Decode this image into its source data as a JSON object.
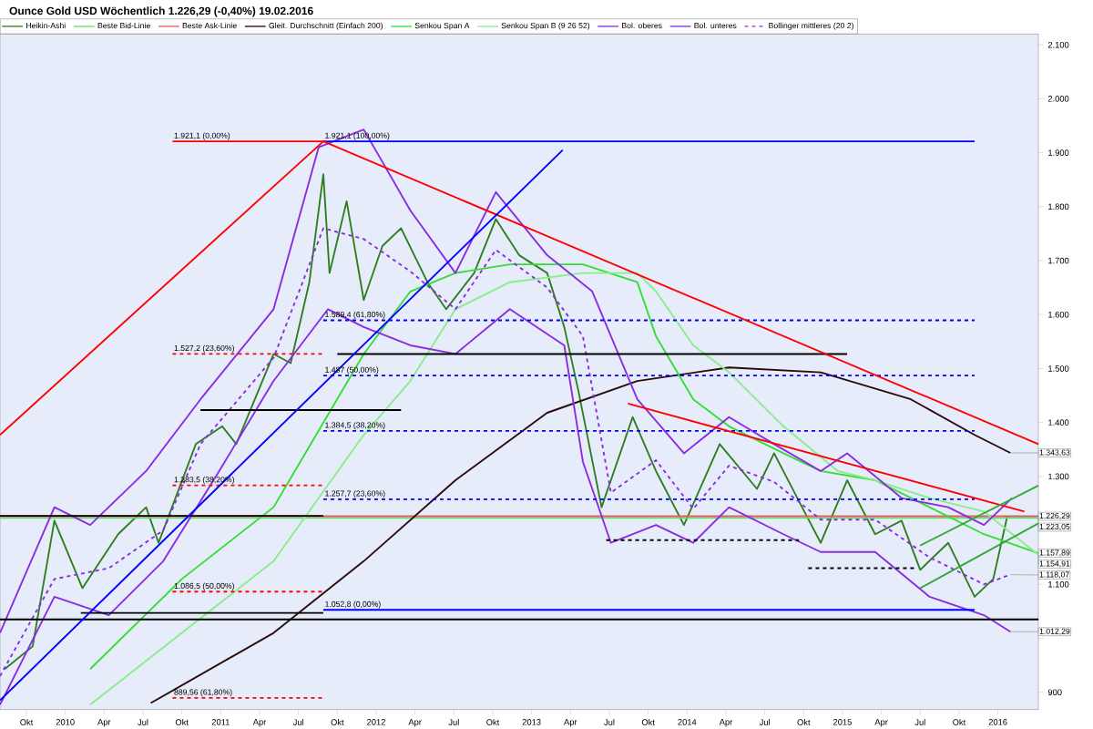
{
  "chart_data": {
    "type": "line",
    "title": "Ounce Gold USD   Wöchentlich   1.226,29 (-0,40%)   19.02.2016",
    "xlim": [
      2009.58,
      2016.26
    ],
    "ylim": [
      868,
      2120
    ],
    "xticks": [
      {
        "value": 2009.75,
        "label": "Okt"
      },
      {
        "value": 2010,
        "label": "2010"
      },
      {
        "value": 2010.25,
        "label": "Apr"
      },
      {
        "value": 2010.5,
        "label": "Jul"
      },
      {
        "value": 2010.75,
        "label": "Okt"
      },
      {
        "value": 2011,
        "label": "2011"
      },
      {
        "value": 2011.25,
        "label": "Apr"
      },
      {
        "value": 2011.5,
        "label": "Jul"
      },
      {
        "value": 2011.75,
        "label": "Okt"
      },
      {
        "value": 2012,
        "label": "2012"
      },
      {
        "value": 2012.25,
        "label": "Apr"
      },
      {
        "value": 2012.5,
        "label": "Jul"
      },
      {
        "value": 2012.75,
        "label": "Okt"
      },
      {
        "value": 2013,
        "label": "2013"
      },
      {
        "value": 2013.25,
        "label": "Apr"
      },
      {
        "value": 2013.5,
        "label": "Jul"
      },
      {
        "value": 2013.75,
        "label": "Okt"
      },
      {
        "value": 2014,
        "label": "2014"
      },
      {
        "value": 2014.25,
        "label": "Apr"
      },
      {
        "value": 2014.5,
        "label": "Jul"
      },
      {
        "value": 2014.75,
        "label": "Okt"
      },
      {
        "value": 2015,
        "label": "2015"
      },
      {
        "value": 2015.25,
        "label": "Apr"
      },
      {
        "value": 2015.5,
        "label": "Jul"
      },
      {
        "value": 2015.75,
        "label": "Okt"
      },
      {
        "value": 2016,
        "label": "2016"
      }
    ],
    "yticks": [
      900,
      {
        "value": 1000,
        "label": null
      },
      {
        "value": 1100,
        "label": "1.100"
      },
      {
        "value": 1200,
        "label": null
      },
      {
        "value": 1300,
        "label": "1.300"
      },
      {
        "value": 1400,
        "label": "1.400"
      },
      {
        "value": 1500,
        "label": "1.500"
      },
      {
        "value": 1600,
        "label": "1.600"
      },
      {
        "value": 1700,
        "label": "1.700"
      },
      {
        "value": 1800,
        "label": "1.800"
      },
      {
        "value": 1900,
        "label": "1.900"
      },
      {
        "value": 2000,
        "label": "2.000"
      },
      {
        "value": 2100,
        "label": "2.100"
      }
    ],
    "legend": "top left",
    "series": [
      {
        "name": "Heikin-Ashi",
        "color": "#2e7d1e",
        "x": [
          2009.61,
          2009.79,
          2009.93,
          2010.11,
          2010.34,
          2010.52,
          2010.6,
          2010.84,
          2011.01,
          2011.1,
          2011.34,
          2011.45,
          2011.57,
          2011.66,
          2011.7,
          2011.81,
          2011.92,
          2012.04,
          2012.16,
          2012.33,
          2012.45,
          2012.63,
          2012.77,
          2012.92,
          2013.1,
          2013.21,
          2013.3,
          2013.45,
          2013.57,
          2013.65,
          2013.8,
          2013.98,
          2014.21,
          2014.45,
          2014.56,
          2014.74,
          2014.86,
          2015.03,
          2015.21,
          2015.38,
          2015.5,
          2015.68,
          2015.85,
          2015.97,
          2016.06
        ],
        "values": [
          943,
          985,
          1218,
          1093,
          1193,
          1243,
          1177,
          1360,
          1393,
          1360,
          1527,
          1510,
          1660,
          1860,
          1677,
          1810,
          1627,
          1727,
          1760,
          1660,
          1610,
          1677,
          1777,
          1710,
          1677,
          1577,
          1460,
          1243,
          1343,
          1410,
          1310,
          1210,
          1360,
          1277,
          1343,
          1243,
          1177,
          1293,
          1193,
          1218,
          1127,
          1177,
          1077,
          1110,
          1226.29
        ]
      },
      {
        "name": "Beste Bid-Linie",
        "color": "#66dd66",
        "x": [
          2009.58,
          2016.26
        ],
        "values": [
          1223.05,
          1223.05
        ]
      },
      {
        "name": "Beste Ask-Linie",
        "color": "#e06060",
        "x": [
          2009.58,
          2016.26
        ],
        "values": [
          1226.29,
          1226.29
        ]
      },
      {
        "name": "Gleit. Durchschnitt (Einfach 200)",
        "color": "#2b0a0a",
        "x": [
          2010.55,
          2011.34,
          2011.92,
          2012.51,
          2013.1,
          2013.68,
          2014.27,
          2014.86,
          2015.44,
          2015.85,
          2016.08
        ],
        "values": [
          880,
          1010,
          1143,
          1293,
          1418,
          1477,
          1502,
          1493,
          1443,
          1377,
          1343.63
        ]
      },
      {
        "name": "Senkou Span A",
        "color": "#33dd33",
        "x": [
          2010.16,
          2010.75,
          2011.34,
          2011.92,
          2012.22,
          2012.51,
          2012.86,
          2013.33,
          2013.68,
          2013.8,
          2014.04,
          2014.27,
          2014.62,
          2014.86,
          2015.21,
          2015.56,
          2015.91,
          2016.26
        ],
        "values": [
          943,
          1110,
          1243,
          1527,
          1643,
          1677,
          1693,
          1693,
          1660,
          1560,
          1443,
          1393,
          1343,
          1310,
          1293,
          1243,
          1193,
          1157.89
        ]
      },
      {
        "name": "Senkou Span B (9 26 52)",
        "color": "#88ee88",
        "x": [
          2010.16,
          2010.75,
          2011.34,
          2011.92,
          2012.22,
          2012.51,
          2012.86,
          2013.33,
          2013.68,
          2013.8,
          2014.04,
          2014.27,
          2014.62,
          2014.97,
          2015.21,
          2015.56,
          2015.91,
          2016.26
        ],
        "values": [
          877,
          1010,
          1143,
          1377,
          1477,
          1610,
          1660,
          1677,
          1677,
          1643,
          1543,
          1493,
          1393,
          1310,
          1293,
          1260,
          1235,
          1154.91
        ]
      },
      {
        "name": "Bol. oberes",
        "color": "#8a2be2",
        "x": [
          2009.58,
          2009.93,
          2010.16,
          2010.52,
          2010.87,
          2011.34,
          2011.63,
          2011.92,
          2012.22,
          2012.51,
          2012.77,
          2013.1,
          2013.39,
          2013.68,
          2013.98,
          2014.27,
          2014.56,
          2014.86,
          2015.03,
          2015.38,
          2015.68,
          2015.91,
          2016.09
        ],
        "values": [
          1010,
          1243,
          1210,
          1310,
          1443,
          1610,
          1910,
          1943,
          1793,
          1677,
          1827,
          1710,
          1643,
          1443,
          1343,
          1410,
          1360,
          1310,
          1343,
          1260,
          1243,
          1210,
          1260
        ]
      },
      {
        "name": "Bol. unteres",
        "color": "#8a2be2",
        "x": [
          2009.58,
          2009.93,
          2010.28,
          2010.63,
          2010.99,
          2011.34,
          2011.69,
          2011.92,
          2012.22,
          2012.51,
          2012.86,
          2013.21,
          2013.33,
          2013.51,
          2013.8,
          2014.04,
          2014.27,
          2014.62,
          2014.86,
          2015.21,
          2015.56,
          2015.91,
          2016.08
        ],
        "values": [
          877,
          1077,
          1043,
          1143,
          1310,
          1477,
          1610,
          1577,
          1543,
          1527,
          1610,
          1543,
          1327,
          1177,
          1210,
          1177,
          1243,
          1193,
          1160,
          1160,
          1077,
          1043,
          1012.29
        ]
      },
      {
        "name": "Bollinger mittleres (20 2)",
        "color": "#8a2be2",
        "line_style": "dashed",
        "x": [
          2009.58,
          2009.93,
          2010.28,
          2010.63,
          2010.87,
          2011.34,
          2011.66,
          2011.92,
          2012.22,
          2012.51,
          2012.77,
          2013.1,
          2013.33,
          2013.51,
          2013.8,
          2014.04,
          2014.27,
          2014.56,
          2014.86,
          2015.21,
          2015.56,
          2015.91,
          2016.08
        ],
        "values": [
          930,
          1110,
          1130,
          1200,
          1360,
          1520,
          1760,
          1740,
          1680,
          1610,
          1720,
          1650,
          1560,
          1270,
          1330,
          1240,
          1320,
          1290,
          1220,
          1220,
          1150,
          1100,
          1118.07
        ]
      },
      {
        "color": "#ff0000",
        "x": [
          2010.69,
          2011.66
        ],
        "values": [
          1921.1,
          1921.1
        ]
      },
      {
        "color": "#0000ff",
        "x": [
          2011.66,
          2015.85
        ],
        "values": [
          1921.1,
          1921.1
        ]
      },
      {
        "color": "#ff0000",
        "line_style": "dashed",
        "x": [
          2010.69,
          2011.66
        ],
        "values": [
          1527.2,
          1527.2
        ]
      },
      {
        "color": "#ff0000",
        "line_style": "dashed",
        "x": [
          2010.69,
          2011.66
        ],
        "values": [
          1283.5,
          1283.5
        ]
      },
      {
        "color": "#ff0000",
        "line_style": "dashed",
        "x": [
          2010.69,
          2011.66
        ],
        "values": [
          1086.5,
          1086.5
        ]
      },
      {
        "color": "#ff0000",
        "line_style": "dashed",
        "x": [
          2010.69,
          2011.66
        ],
        "values": [
          889.56,
          889.56
        ]
      },
      {
        "color": "#0000ff",
        "line_style": "dashed",
        "x": [
          2011.66,
          2015.85
        ],
        "values": [
          1589.4,
          1589.4
        ]
      },
      {
        "color": "#0000ff",
        "line_style": "dashed",
        "x": [
          2011.66,
          2015.85
        ],
        "values": [
          1487,
          1487
        ]
      },
      {
        "color": "#0000ff",
        "line_style": "dashed",
        "x": [
          2011.66,
          2015.85
        ],
        "values": [
          1384.5,
          1384.5
        ]
      },
      {
        "color": "#0000ff",
        "line_style": "dashed",
        "x": [
          2011.66,
          2015.85
        ],
        "values": [
          1257.7,
          1257.7
        ]
      },
      {
        "color": "#0000ff",
        "x": [
          2011.66,
          2015.85
        ],
        "values": [
          1052.8,
          1052.8
        ]
      },
      {
        "color": "#000000",
        "x": [
          2011.75,
          2015.03
        ],
        "values": [
          1527,
          1527
        ]
      },
      {
        "color": "#000000",
        "x": [
          2009.58,
          2016.26
        ],
        "values": [
          1035,
          1035
        ]
      },
      {
        "color": "#000000",
        "x": [
          2010.1,
          2011.66
        ],
        "values": [
          1047,
          1047
        ]
      },
      {
        "color": "#000000",
        "x": [
          2010.87,
          2012.16
        ],
        "values": [
          1423,
          1423
        ]
      },
      {
        "color": "#000000",
        "x": [
          2009.58,
          2011.66
        ],
        "values": [
          1227,
          1227
        ]
      },
      {
        "color": "#000000",
        "line_style": "dashed",
        "x": [
          2013.48,
          2014.72
        ],
        "values": [
          1182,
          1182
        ]
      },
      {
        "color": "#000000",
        "line_style": "dashed",
        "x": [
          2014.78,
          2015.48
        ],
        "values": [
          1130,
          1130
        ]
      },
      {
        "color": "#ff0000",
        "x": [
          2009.58,
          2011.66,
          2016.26
        ],
        "values": [
          1377,
          1921.1,
          1360
        ]
      },
      {
        "color": "#ff0000",
        "x": [
          2013.62,
          2016.17
        ],
        "values": [
          1435,
          1235
        ]
      },
      {
        "color": "#0000ff",
        "x": [
          2009.58,
          2013.2
        ],
        "values": [
          885,
          1905
        ]
      },
      {
        "color": "#33aa33",
        "x": [
          2015.5,
          2016.26
        ],
        "values": [
          1093,
          1213
        ]
      },
      {
        "color": "#33aa33",
        "x": [
          2015.5,
          2016.26
        ],
        "values": [
          1172,
          1283
        ]
      }
    ],
    "annotations": [
      {
        "text": "1.921,1 (0,00%)",
        "x": 2010.69,
        "y": 1921.1
      },
      {
        "text": "1.921,1 (100,00%)",
        "x": 2011.66,
        "y": 1921.1
      },
      {
        "text": "1.527,2 (23,60%)",
        "x": 2010.69,
        "y": 1527.2
      },
      {
        "text": "1.283,5 (38,20%)",
        "x": 2010.69,
        "y": 1283.5
      },
      {
        "text": "1.086,5 (50,00%)",
        "x": 2010.69,
        "y": 1086.5
      },
      {
        "text": "889,56 (61,80%)",
        "x": 2010.69,
        "y": 889.56
      },
      {
        "text": "1.589,4 (61,80%)",
        "x": 2011.66,
        "y": 1589.4
      },
      {
        "text": "1.487 (50,00%)",
        "x": 2011.66,
        "y": 1487
      },
      {
        "text": "1.384,5 (38,20%)",
        "x": 2011.66,
        "y": 1384.5
      },
      {
        "text": "1.257,7 (23,60%)",
        "x": 2011.66,
        "y": 1257.7
      },
      {
        "text": "1.052,8 (0,00%)",
        "x": 2011.66,
        "y": 1052.8
      },
      {
        "text": "1.343,63",
        "x": 2016.08,
        "y": 1343.63
      },
      {
        "text": "1.226,29",
        "x": 2016.06,
        "y": 1226.29
      },
      {
        "text": "1.223,05",
        "x": 2016.26,
        "y": 1223.05
      },
      {
        "text": "1.157,89",
        "x": 2016.26,
        "y": 1157.89
      },
      {
        "text": "1.154,91",
        "x": 2016.26,
        "y": 1154.91
      },
      {
        "text": "1.118,07",
        "x": 2016.08,
        "y": 1118.07
      },
      {
        "text": "1.012,29",
        "x": 2016.08,
        "y": 1012.29
      }
    ]
  }
}
